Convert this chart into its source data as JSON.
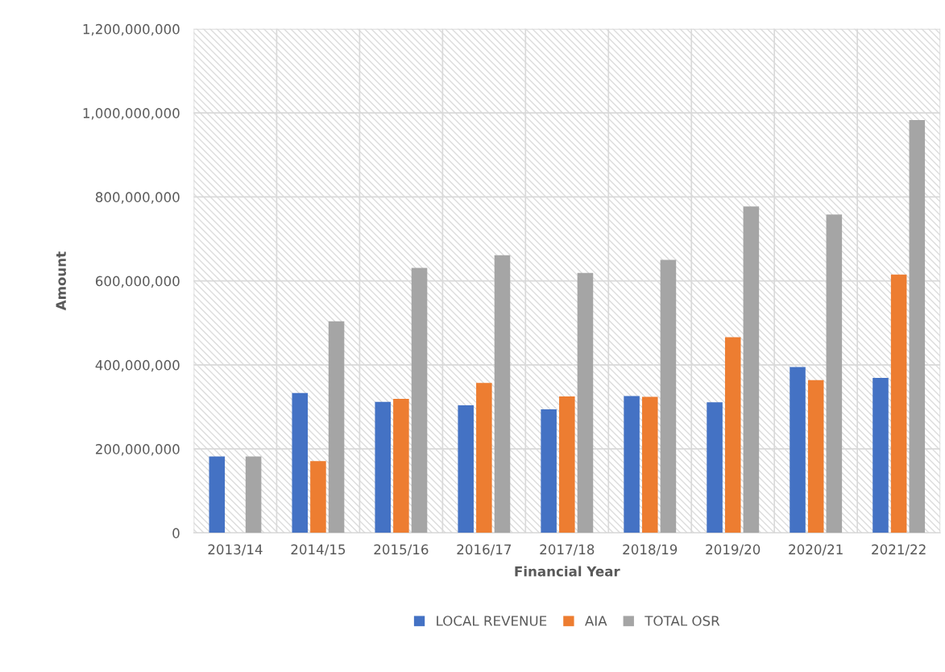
{
  "chart_data": {
    "type": "bar",
    "xlabel": "Financial Year",
    "ylabel": "Amount",
    "categories": [
      "2013/14",
      "2014/15",
      "2015/16",
      "2016/17",
      "2017/18",
      "2018/19",
      "2019/20",
      "2020/21",
      "2021/22"
    ],
    "series": [
      {
        "name": "LOCAL REVENUE",
        "color": "#4472c4",
        "values": [
          182000000,
          333000000,
          312000000,
          304000000,
          294000000,
          326000000,
          311000000,
          395000000,
          369000000
        ]
      },
      {
        "name": "AIA",
        "color": "#ed7d31",
        "values": [
          null,
          171000000,
          319000000,
          357000000,
          325000000,
          324000000,
          466000000,
          364000000,
          615000000
        ]
      },
      {
        "name": "TOTAL OSR",
        "color": "#a5a5a5",
        "values": [
          182000000,
          504000000,
          631000000,
          661000000,
          619000000,
          650000000,
          777000000,
          758000000,
          983000000
        ]
      }
    ],
    "ylim": [
      0,
      1200000000
    ],
    "yticks": [
      {
        "value": 0,
        "label": "0"
      },
      {
        "value": 200000000,
        "label": "200,000,000"
      },
      {
        "value": 400000000,
        "label": "400,000,000"
      },
      {
        "value": 600000000,
        "label": "600,000,000"
      },
      {
        "value": 800000000,
        "label": "800,000,000"
      },
      {
        "value": 1000000000,
        "label": "1,000,000,000"
      },
      {
        "value": 1200000000,
        "label": "1,200,000,000"
      }
    ],
    "grid": true,
    "legend": "bottom"
  }
}
